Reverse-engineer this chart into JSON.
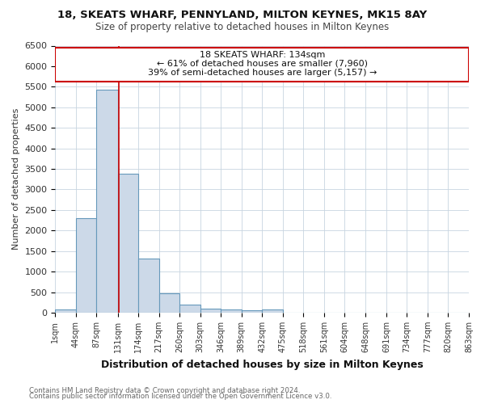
{
  "title1": "18, SKEATS WHARF, PENNYLAND, MILTON KEYNES, MK15 8AY",
  "title2": "Size of property relative to detached houses in Milton Keynes",
  "xlabel": "Distribution of detached houses by size in Milton Keynes",
  "ylabel": "Number of detached properties",
  "bin_edges": [
    1,
    44,
    87,
    131,
    174,
    217,
    260,
    303,
    346,
    389,
    432,
    475,
    518,
    561,
    604,
    648,
    691,
    734,
    777,
    820,
    863
  ],
  "bar_heights": [
    80,
    2300,
    5420,
    3380,
    1310,
    480,
    190,
    90,
    70,
    50,
    70,
    0,
    0,
    0,
    0,
    0,
    0,
    0,
    0,
    0
  ],
  "bar_color": "#ccd9e8",
  "bar_edge_color": "#6699bb",
  "property_line_x": 134,
  "property_line_color": "#cc0000",
  "annotation_title": "18 SKEATS WHARF: 134sqm",
  "annotation_line1": "← 61% of detached houses are smaller (7,960)",
  "annotation_line2": "39% of semi-detached houses are larger (5,157) →",
  "annotation_box_color": "#cc0000",
  "ylim": [
    0,
    6500
  ],
  "yticks": [
    0,
    500,
    1000,
    1500,
    2000,
    2500,
    3000,
    3500,
    4000,
    4500,
    5000,
    5500,
    6000,
    6500
  ],
  "footnote1": "Contains HM Land Registry data © Crown copyright and database right 2024.",
  "footnote2": "Contains public sector information licensed under the Open Government Licence v3.0.",
  "bg_color": "#ffffff",
  "plot_bg_color": "#ffffff",
  "grid_color": "#c8d4e0"
}
